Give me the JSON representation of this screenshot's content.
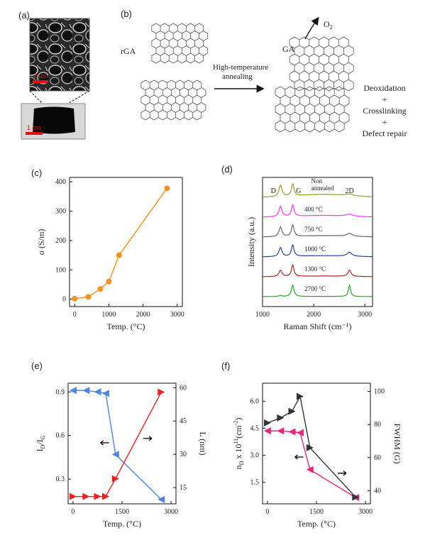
{
  "panels": {
    "a": {
      "label": "(a)",
      "sem_scale": "2 μm",
      "photo_scale": "1 cm"
    },
    "b": {
      "label": "(b)",
      "rga": "rGA",
      "arrow_line1": "High-temperature",
      "arrow_line2": "annealing",
      "ga": "GA",
      "o2": "O",
      "o2_sub": "2",
      "process": [
        "Deoxidation",
        "+",
        "Crosslinking",
        "+",
        "Defect repair"
      ]
    },
    "c": {
      "label": "(c)"
    },
    "d": {
      "label": "(d)"
    },
    "e": {
      "label": "(e)"
    },
    "f": {
      "label": "(f)"
    }
  },
  "chart_data": [
    {
      "panel": "c",
      "type": "line",
      "xlabel": "Temp. (°C)",
      "ylabel": "σ (S/m)",
      "xlim": [
        -150,
        3150
      ],
      "ylim": [
        -25,
        415
      ],
      "xticks": [
        0,
        1000,
        2000,
        3000
      ],
      "yticks": [
        0,
        100,
        200,
        300,
        400
      ],
      "series": [
        {
          "x": [
            0,
            400,
            750,
            1000,
            1300,
            2700
          ],
          "y": [
            2,
            8,
            35,
            60,
            150,
            378
          ],
          "color": "#f7941d",
          "marker": "circle"
        }
      ]
    },
    {
      "panel": "d",
      "type": "line",
      "xlabel": "Raman Shift (cm⁻¹)",
      "ylabel": "Intensity (a.u.)",
      "xlim": [
        1000,
        3150
      ],
      "xticks": [
        1000,
        2000,
        3000
      ],
      "peak_labels": [
        "D",
        "G",
        "2D"
      ],
      "series": [
        {
          "name": "Non annealed",
          "color": "#9a9a30"
        },
        {
          "name": "400 °C",
          "color": "#ff33ff"
        },
        {
          "name": "750 °C",
          "color": "#666666"
        },
        {
          "name": "1000 °C",
          "color": "#2e3f9e"
        },
        {
          "name": "1300 °C",
          "color": "#b22222"
        },
        {
          "name": "2700 °C",
          "color": "#2ca02c"
        }
      ]
    },
    {
      "panel": "e",
      "type": "line",
      "xlabel": "Temp. (°C)",
      "ylabel_left": "I_D/I_G",
      "ylabel_right": "L (nm)",
      "xlim": [
        -150,
        3150
      ],
      "ylim_left": [
        0.13,
        0.96
      ],
      "ylim_right": [
        7.7,
        62
      ],
      "xticks": [
        0,
        1500,
        3000
      ],
      "yticks_left": [
        "0.3",
        "0.6",
        "0.9"
      ],
      "yticks_right": [
        15,
        30,
        45,
        60
      ],
      "series": [
        {
          "axis": "left",
          "x": [
            0,
            400,
            750,
            1000,
            1300,
            2700
          ],
          "y": [
            0.91,
            0.91,
            0.9,
            0.89,
            0.47,
            0.16
          ],
          "color": "#4f83e8",
          "marker": "left-triangle"
        },
        {
          "axis": "right",
          "x": [
            0,
            400,
            750,
            1000,
            1300,
            2700
          ],
          "y": [
            11,
            11,
            11,
            11,
            19,
            58
          ],
          "color": "#ef2020",
          "marker": "right-triangle"
        }
      ]
    },
    {
      "panel": "f",
      "type": "line",
      "xlabel": "Temp. (°C)",
      "ylabel_left": "n_D x 10^11 (cm^-2)",
      "ylabel_right": "FWHM (G)",
      "xlim": [
        -150,
        3150
      ],
      "ylim_left": [
        0.3,
        7.0
      ],
      "ylim_right": [
        32,
        105
      ],
      "xticks": [
        0,
        1500,
        3000
      ],
      "yticks_left": [
        "1.5",
        "3.0",
        "4.5",
        "6.0"
      ],
      "yticks_right": [
        40,
        60,
        80,
        100
      ],
      "series": [
        {
          "axis": "left",
          "x": [
            0,
            400,
            750,
            1000,
            1300,
            2700
          ],
          "y": [
            4.35,
            4.35,
            4.3,
            4.25,
            2.2,
            0.65
          ],
          "color": "#e8257a",
          "marker": "left-triangle"
        },
        {
          "axis": "right",
          "x": [
            0,
            400,
            750,
            1000,
            1300,
            2700
          ],
          "y": [
            81,
            84,
            88,
            97,
            66,
            36
          ],
          "color": "#333333",
          "marker": "right-triangle"
        }
      ]
    }
  ]
}
